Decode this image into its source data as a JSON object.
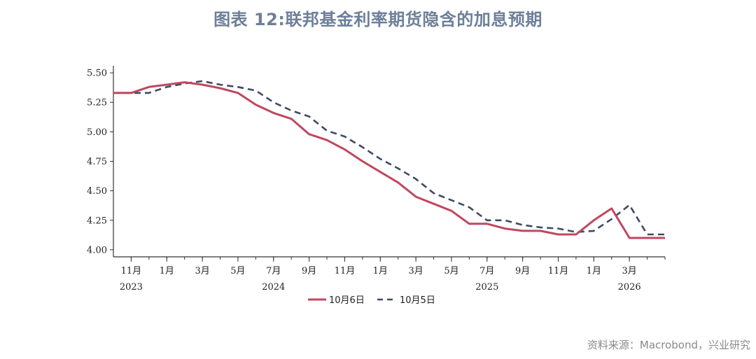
{
  "title": "图表 12:联邦基金利率期货隐含的加息预期",
  "source": "资料来源：Macrobond，兴业研究",
  "colors": {
    "title": "#6e7f99",
    "series_a": "#c0475f",
    "series_b": "#3d4b63",
    "axis": "#333333",
    "source": "#8a8a8a"
  },
  "chart_data": {
    "type": "line",
    "x_tick_labels": [
      "11月",
      "1月",
      "3月",
      "5月",
      "7月",
      "9月",
      "11月",
      "1月",
      "3月",
      "5月",
      "7月",
      "9月",
      "11月",
      "1月",
      "3月"
    ],
    "x_tick_positions": [
      0,
      2,
      4,
      6,
      8,
      10,
      12,
      14,
      16,
      18,
      20,
      22,
      24,
      26,
      28
    ],
    "year_labels": [
      {
        "label": "2023",
        "at": 0
      },
      {
        "label": "2024",
        "at": 8
      },
      {
        "label": "2025",
        "at": 20
      },
      {
        "label": "2026",
        "at": 28
      }
    ],
    "y_ticks": [
      "4.00",
      "4.25",
      "4.50",
      "4.75",
      "5.00",
      "5.25",
      "5.50"
    ],
    "y_tick_values": [
      4.0,
      4.25,
      4.5,
      4.75,
      5.0,
      5.25,
      5.5
    ],
    "ylim": [
      3.94,
      5.56
    ],
    "xlim": [
      -1,
      30
    ],
    "legend_position": "bottom-center",
    "series": [
      {
        "name": "10月6日",
        "style": "solid",
        "x": [
          -1,
          0,
          1,
          2,
          3,
          4,
          5,
          6,
          7,
          8,
          9,
          10,
          11,
          12,
          13,
          14,
          15,
          16,
          17,
          18,
          19,
          20,
          21,
          22,
          23,
          24,
          25,
          26,
          27,
          28,
          29,
          30
        ],
        "y": [
          5.33,
          5.33,
          5.38,
          5.4,
          5.42,
          5.4,
          5.37,
          5.33,
          5.23,
          5.16,
          5.11,
          4.98,
          4.93,
          4.85,
          4.75,
          4.66,
          4.57,
          4.45,
          4.39,
          4.33,
          4.22,
          4.22,
          4.18,
          4.16,
          4.16,
          4.13,
          4.13,
          4.25,
          4.35,
          4.1,
          4.1,
          4.1
        ]
      },
      {
        "name": "10月5日",
        "style": "dashed",
        "x": [
          -1,
          0,
          1,
          2,
          3,
          4,
          5,
          6,
          7,
          8,
          9,
          10,
          11,
          12,
          13,
          14,
          15,
          16,
          17,
          18,
          19,
          20,
          21,
          22,
          23,
          24,
          25,
          26,
          27,
          28,
          29,
          30
        ],
        "y": [
          5.33,
          5.33,
          5.33,
          5.38,
          5.41,
          5.43,
          5.4,
          5.38,
          5.35,
          5.25,
          5.18,
          5.13,
          5.01,
          4.96,
          4.87,
          4.77,
          4.69,
          4.6,
          4.48,
          4.42,
          4.36,
          4.25,
          4.25,
          4.21,
          4.19,
          4.18,
          4.15,
          4.16,
          4.26,
          4.38,
          4.13,
          4.13
        ]
      }
    ]
  }
}
